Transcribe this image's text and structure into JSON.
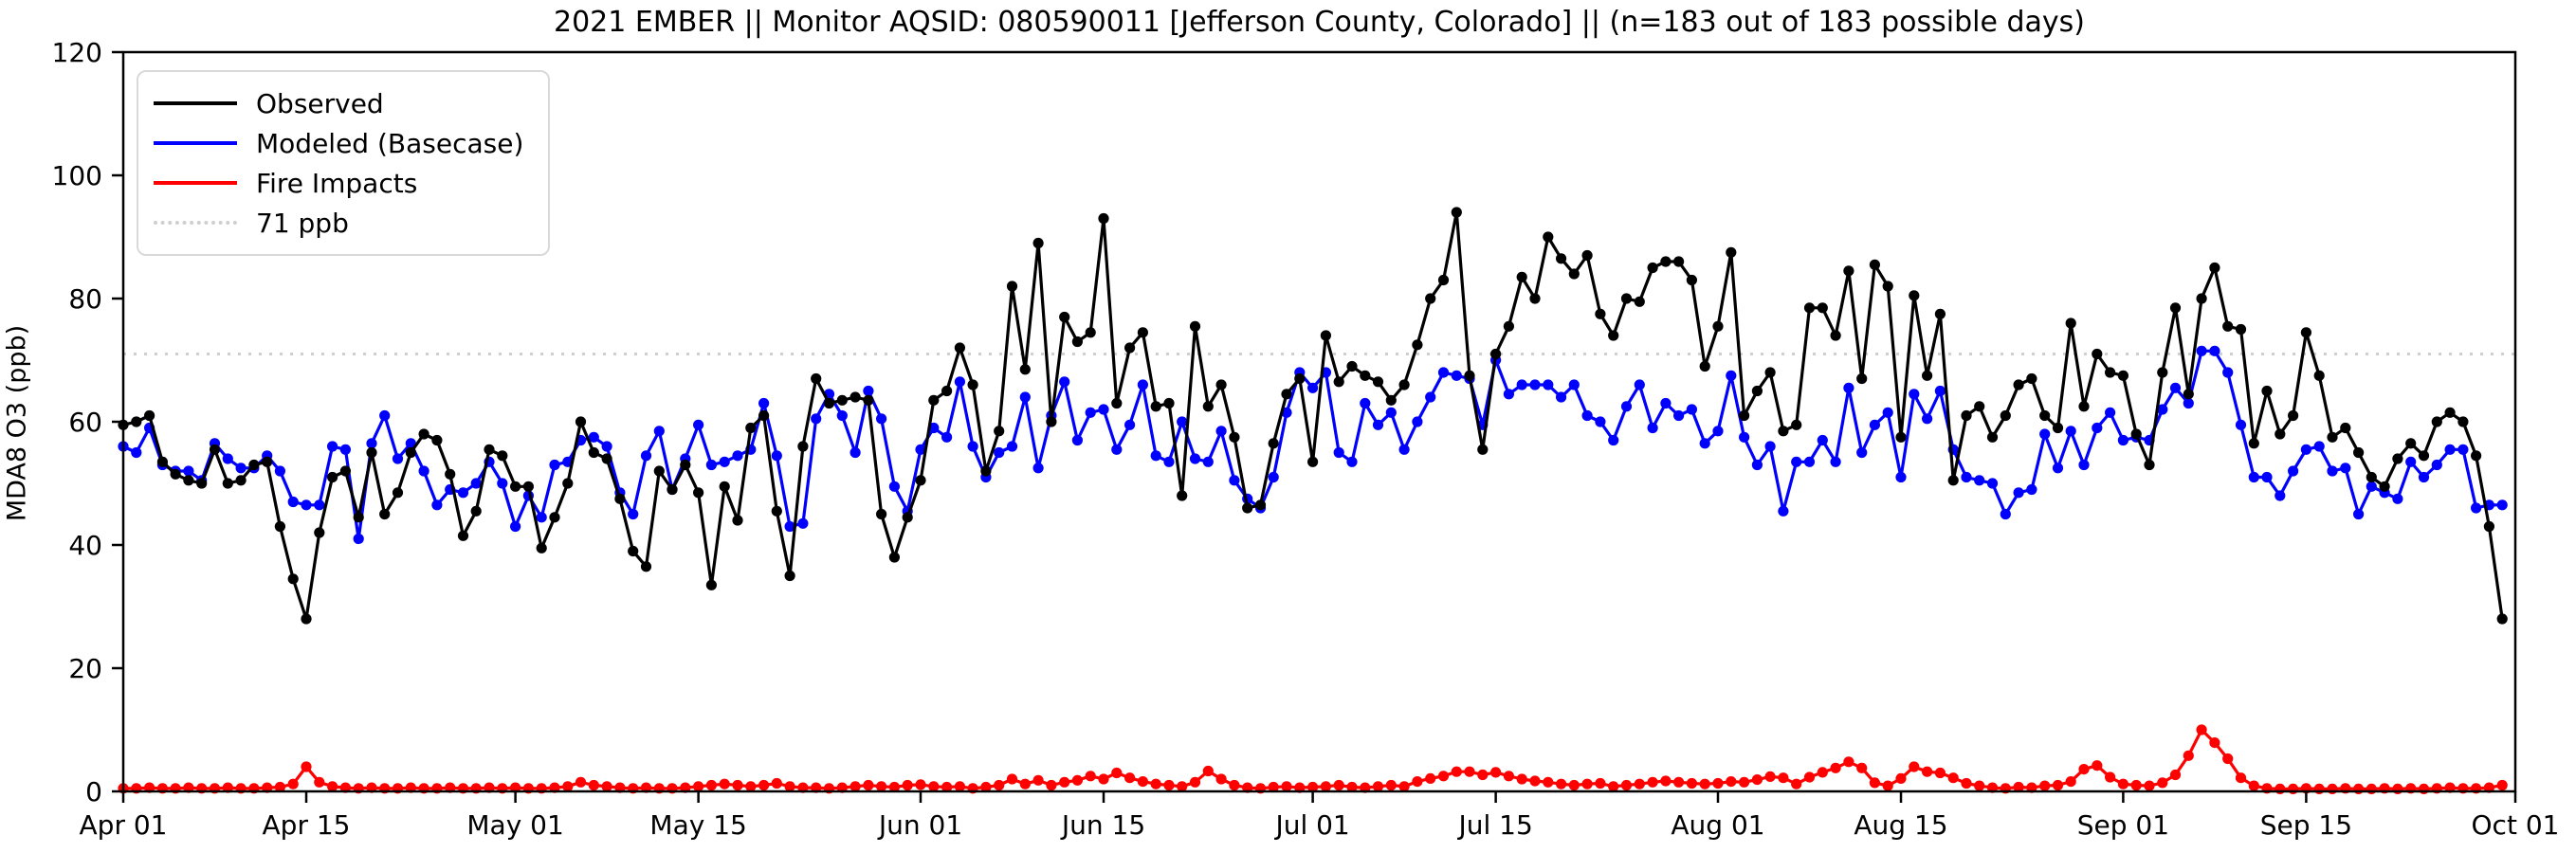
{
  "chart_data": {
    "type": "line",
    "title": "2021 EMBER || Monitor AQSID: 080590011 [Jefferson County, Colorado] || (n=183 out of 183 possible days)",
    "xlabel": "",
    "ylabel": "MDA8 O3 (ppb)",
    "ylim": [
      0,
      120
    ],
    "yticks": [
      0,
      20,
      40,
      60,
      80,
      100,
      120
    ],
    "x_start_label": "Apr 01",
    "x_end_label": "Oct 01",
    "n_days": 183,
    "grid": false,
    "legend_position": "upper left",
    "xticks": [
      {
        "label": "Apr 01",
        "day": 0
      },
      {
        "label": "Apr 15",
        "day": 14
      },
      {
        "label": "May 01",
        "day": 30
      },
      {
        "label": "May 15",
        "day": 44
      },
      {
        "label": "Jun 01",
        "day": 61
      },
      {
        "label": "Jun 15",
        "day": 75
      },
      {
        "label": "Jul 01",
        "day": 91
      },
      {
        "label": "Jul 15",
        "day": 105
      },
      {
        "label": "Aug 01",
        "day": 122
      },
      {
        "label": "Aug 15",
        "day": 136
      },
      {
        "label": "Sep 01",
        "day": 153
      },
      {
        "label": "Sep 15",
        "day": 167
      },
      {
        "label": "Oct 01",
        "day": 183
      }
    ],
    "threshold": {
      "value": 71,
      "label": "71 ppb",
      "color": "#cfcfcf",
      "style": "dotted"
    },
    "series": [
      {
        "name": "Observed",
        "color": "#000000",
        "values": [
          59.5,
          60,
          61,
          53.5,
          51.5,
          50.5,
          50,
          55.5,
          50,
          50.5,
          53,
          53.5,
          43,
          34.5,
          28,
          42,
          51,
          52,
          44.5,
          55,
          45,
          48.5,
          55,
          58,
          57,
          51.5,
          41.5,
          45.5,
          55.5,
          54.5,
          49.5,
          49.5,
          39.5,
          44.5,
          50,
          60,
          55,
          54,
          47.5,
          39,
          36.5,
          52,
          49,
          53,
          48.5,
          33.5,
          49.5,
          44,
          59,
          61,
          45.5,
          35,
          56,
          67,
          63,
          63.5,
          64,
          63.5,
          45,
          38,
          44.5,
          50.5,
          63.5,
          65,
          72,
          66,
          52,
          58.5,
          82,
          68.5,
          89,
          60,
          77,
          73,
          74.5,
          93,
          63,
          72,
          74.5,
          62.5,
          63,
          48,
          75.5,
          62.5,
          66,
          57.5,
          46,
          46.5,
          56.5,
          64.5,
          67,
          53.5,
          74,
          66.5,
          69,
          67.5,
          66.5,
          63.5,
          66,
          72.5,
          80,
          83,
          94,
          67.5,
          55.5,
          71,
          75.5,
          83.5,
          80,
          90,
          86.5,
          84,
          87,
          77.5,
          74,
          80,
          79.5,
          85,
          86,
          86,
          83,
          69,
          75.5,
          87.5,
          61,
          65,
          68,
          58.5,
          59.5,
          78.5,
          78.5,
          74,
          84.5,
          67,
          85.5,
          82,
          57.5,
          80.5,
          67.5,
          77.5,
          50.5,
          61,
          62.5,
          57.5,
          61,
          66,
          67,
          61,
          59,
          76,
          62.5,
          71,
          68,
          67.5,
          58,
          53,
          68,
          78.5,
          64.5,
          80,
          85,
          75.5,
          75,
          56.5,
          65,
          58,
          61,
          74.5,
          67.5,
          57.5,
          59,
          55,
          51,
          49.5,
          54,
          56.5,
          54.5,
          60,
          61.5,
          60,
          54.5,
          43,
          28
        ]
      },
      {
        "name": "Modeled (Basecase)",
        "color": "#0000ff",
        "values": [
          56,
          55,
          59,
          53,
          52,
          52,
          50.5,
          56.5,
          54,
          52.5,
          52.5,
          54.5,
          52,
          47,
          46.5,
          46.5,
          56,
          55.5,
          41,
          56.5,
          61,
          54,
          56.5,
          52,
          46.5,
          49,
          48.5,
          50,
          53.5,
          50,
          43,
          48,
          44.5,
          53,
          53.5,
          57,
          57.5,
          56,
          48.5,
          45,
          54.5,
          58.5,
          49,
          54,
          59.5,
          53,
          53.5,
          54.5,
          55.5,
          63,
          54.5,
          43,
          43.5,
          60.5,
          64.5,
          61,
          55,
          65,
          60.5,
          49.5,
          45.5,
          55.5,
          59,
          57.5,
          66.5,
          56,
          51,
          55,
          56,
          64,
          52.5,
          61,
          66.5,
          57,
          61.5,
          62,
          55.5,
          59.5,
          66,
          54.5,
          53.5,
          60,
          54,
          53.5,
          58.5,
          50.5,
          47.5,
          46,
          51,
          61.5,
          68,
          65.5,
          68,
          55,
          53.5,
          63,
          59.5,
          61.5,
          55.5,
          60,
          64,
          68,
          67.5,
          67,
          59.5,
          70,
          64.5,
          66,
          66,
          66,
          64,
          66,
          61,
          60,
          57,
          62.5,
          66,
          59,
          63,
          61,
          62,
          56.5,
          58.5,
          67.5,
          57.5,
          53,
          56,
          45.5,
          53.5,
          53.5,
          57,
          53.5,
          65.5,
          55,
          59.5,
          61.5,
          51,
          64.5,
          60.5,
          65,
          55.5,
          51,
          50.5,
          50,
          45,
          48.5,
          49,
          58,
          52.5,
          58.5,
          53,
          59,
          61.5,
          57,
          57.5,
          57,
          62,
          65.5,
          63,
          71.5,
          71.5,
          68,
          59.5,
          51,
          51,
          48,
          52,
          55.5,
          56,
          52,
          52.5,
          45,
          49.5,
          48.5,
          47.5,
          53.5,
          51,
          53,
          55.5,
          55.5,
          46,
          46.5,
          46.5
        ]
      },
      {
        "name": "Fire Impacts",
        "color": "#ff0000",
        "values": [
          0.5,
          0.5,
          0.6,
          0.5,
          0.5,
          0.6,
          0.5,
          0.5,
          0.6,
          0.5,
          0.5,
          0.6,
          0.7,
          1.2,
          4,
          1.5,
          0.8,
          0.6,
          0.5,
          0.6,
          0.5,
          0.5,
          0.6,
          0.5,
          0.5,
          0.6,
          0.5,
          0.5,
          0.6,
          0.5,
          0.6,
          0.5,
          0.5,
          0.6,
          0.8,
          1.5,
          1,
          0.8,
          0.6,
          0.5,
          0.6,
          0.5,
          0.5,
          0.6,
          0.8,
          1,
          1.2,
          1,
          0.8,
          1,
          1.3,
          0.8,
          0.6,
          0.6,
          0.5,
          0.6,
          0.8,
          1,
          0.8,
          0.7,
          1,
          1.1,
          0.8,
          0.7,
          0.8,
          0.5,
          0.7,
          1,
          2,
          1.2,
          1.8,
          1,
          1.5,
          1.8,
          2.5,
          2,
          3,
          2.2,
          1.6,
          1.2,
          1,
          0.8,
          1.5,
          3.3,
          2,
          1,
          0.6,
          0.5,
          0.7,
          0.8,
          0.6,
          0.7,
          0.8,
          1,
          0.7,
          0.6,
          0.8,
          1,
          0.8,
          1.6,
          2.1,
          2.5,
          3.2,
          3.2,
          2.7,
          3.1,
          2.5,
          2,
          1.7,
          1.5,
          1.2,
          1,
          1.2,
          1.3,
          0.8,
          1,
          1.2,
          1.5,
          1.7,
          1.5,
          1.3,
          1.2,
          1.3,
          1.6,
          1.5,
          1.9,
          2.4,
          2.2,
          1.2,
          2.3,
          3.1,
          3.8,
          4.8,
          3.8,
          1.4,
          0.9,
          2.1,
          4,
          3.2,
          3,
          2.2,
          1.3,
          0.9,
          0.6,
          0.5,
          0.7,
          0.6,
          0.9,
          1,
          1.6,
          3.6,
          4.2,
          2.3,
          1.2,
          1,
          0.9,
          1.4,
          2.7,
          5.8,
          10,
          7.9,
          5.3,
          2.2,
          0.9,
          0.5,
          0.4,
          0.4,
          0.5,
          0.4,
          0.4,
          0.5,
          0.4,
          0.4,
          0.5,
          0.4,
          0.5,
          0.4,
          0.5,
          0.6,
          0.5,
          0.5,
          0.6,
          1
        ]
      }
    ]
  }
}
